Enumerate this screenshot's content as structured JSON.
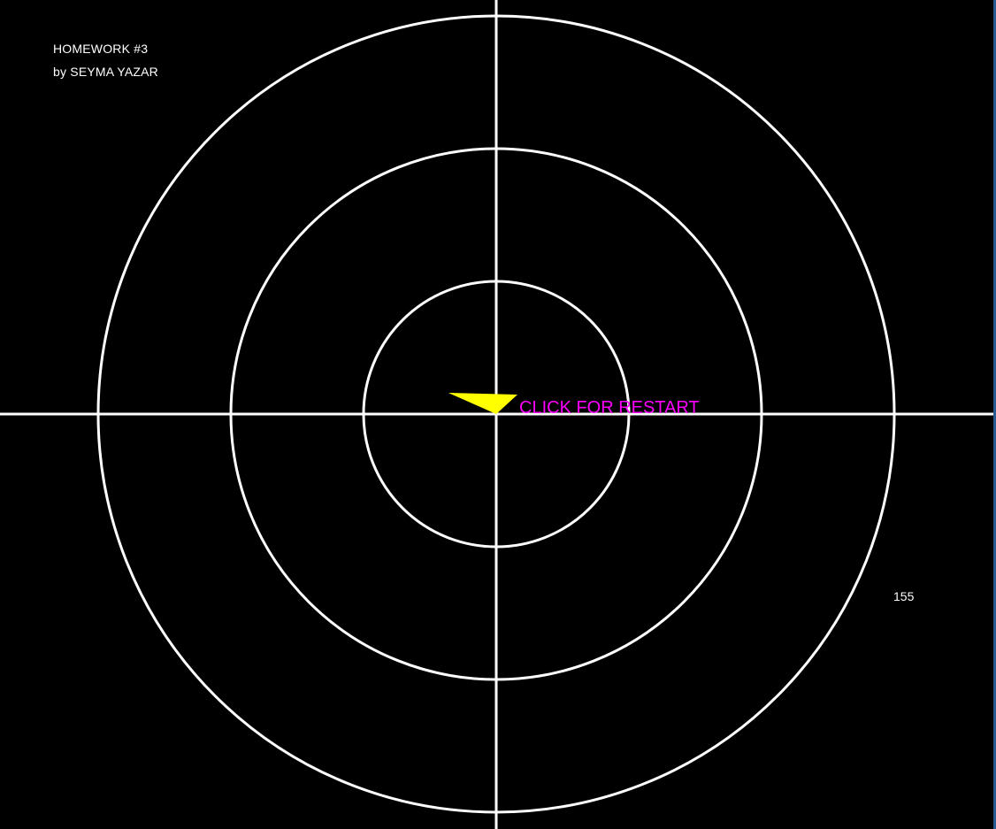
{
  "credit": {
    "line1": "HOMEWORK #3",
    "line2": "by SEYMA YAZAR"
  },
  "restart_label": "CLICK FOR RESTART",
  "score": "155",
  "colors": {
    "background": "#000000",
    "rings": "#ffffff",
    "axes": "#ffffff",
    "pointer": "#ffff00",
    "restart_text": "#ff00ff",
    "window_edge": "#2a5b8f"
  },
  "board": {
    "ring_count": 3,
    "pointer_icon": "yellow-triangle-pointer-icon"
  }
}
